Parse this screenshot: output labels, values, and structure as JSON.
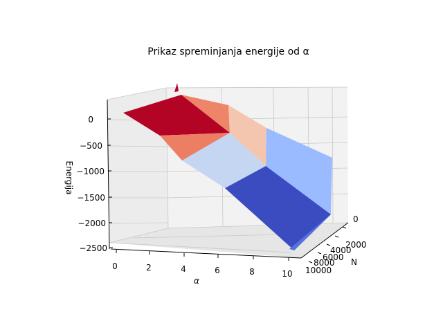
{
  "chart_data": {
    "type": "surface3d",
    "title": "Prikaz spreminjanja energije od α",
    "xlabel": "α",
    "ylabel": "N",
    "zlabel": "Energija",
    "xlim": [
      0,
      10
    ],
    "ylim": [
      0,
      10000
    ],
    "zlim": [
      -2500,
      200
    ],
    "x_ticks": [
      "0",
      "2",
      "4",
      "6",
      "8",
      "10"
    ],
    "y_ticks": [
      "0",
      "2000",
      "4000",
      "6000",
      "8000",
      "10000"
    ],
    "z_ticks": [
      "0",
      "−500",
      "−1000",
      "−1500",
      "−2000",
      "−2500"
    ],
    "colormap": "coolwarm",
    "grid": true,
    "surface": {
      "x_breaks": [
        0,
        3.5,
        6,
        10
      ],
      "y_breaks": [
        0,
        10000
      ],
      "energy_levels": [
        {
          "alpha_from": 0,
          "alpha_to": 3.5,
          "energy_at_N0": 0,
          "energy_at_N10000": -200
        },
        {
          "alpha_from": 3.5,
          "alpha_to": 6,
          "energy_at_N0": -300,
          "energy_at_N10000": -1000
        },
        {
          "alpha_from": 6,
          "alpha_to": 10,
          "energy_at_N0": -900,
          "energy_at_N10000": -2500
        }
      ]
    }
  }
}
